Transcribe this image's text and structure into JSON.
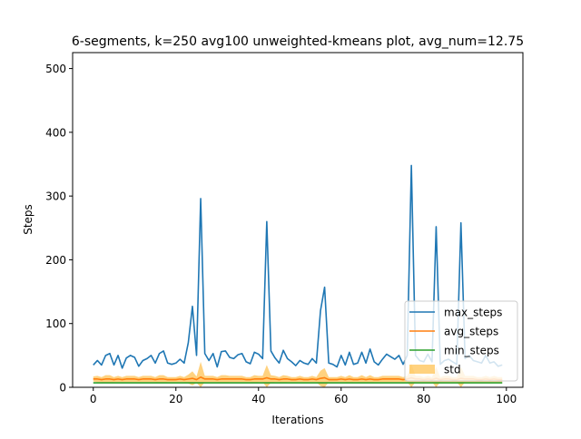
{
  "chart_data": {
    "type": "line",
    "title": "6-segments, k=250 avg100 unweighted-kmeans plot, avg_num=12.75",
    "xlabel": "Iterations",
    "ylabel": "Steps",
    "xlim": [
      -5,
      104
    ],
    "ylim": [
      0,
      525
    ],
    "x_ticks": [
      0,
      20,
      40,
      60,
      80,
      100
    ],
    "y_ticks": [
      0,
      100,
      200,
      300,
      400,
      500
    ],
    "grid": false,
    "legend_position": "bottom-right",
    "series": [
      {
        "name": "max_steps",
        "color": "#1f77b4",
        "x": [
          0,
          1,
          2,
          3,
          4,
          5,
          6,
          7,
          8,
          9,
          10,
          11,
          12,
          13,
          14,
          15,
          16,
          17,
          18,
          19,
          20,
          21,
          22,
          23,
          24,
          25,
          26,
          27,
          28,
          29,
          30,
          31,
          32,
          33,
          34,
          35,
          36,
          37,
          38,
          39,
          40,
          41,
          42,
          43,
          44,
          45,
          46,
          47,
          48,
          49,
          50,
          51,
          52,
          53,
          54,
          55,
          56,
          57,
          58,
          59,
          60,
          61,
          62,
          63,
          64,
          65,
          66,
          67,
          68,
          69,
          70,
          71,
          72,
          73,
          74,
          75,
          76,
          77,
          78,
          79,
          80,
          81,
          82,
          83,
          84,
          85,
          86,
          87,
          88,
          89,
          90,
          91,
          92,
          93,
          94,
          95,
          96,
          97,
          98,
          99
        ],
        "values": [
          35,
          42,
          35,
          50,
          53,
          35,
          50,
          30,
          46,
          50,
          47,
          33,
          42,
          45,
          50,
          38,
          53,
          57,
          38,
          36,
          38,
          44,
          38,
          70,
          127,
          50,
          296,
          53,
          42,
          53,
          32,
          56,
          57,
          47,
          45,
          51,
          53,
          40,
          37,
          55,
          52,
          45,
          260,
          57,
          46,
          38,
          58,
          45,
          40,
          34,
          42,
          38,
          36,
          45,
          38,
          120,
          157,
          38,
          36,
          32,
          50,
          35,
          55,
          36,
          38,
          55,
          38,
          60,
          40,
          35,
          44,
          52,
          48,
          44,
          50,
          36,
          50,
          348,
          50,
          42,
          40,
          52,
          40,
          252,
          36,
          42,
          44,
          40,
          36,
          258,
          45,
          50,
          42,
          40,
          38,
          50,
          38,
          40,
          33,
          35
        ]
      },
      {
        "name": "avg_steps",
        "color": "#ff7f0e",
        "x": [
          0,
          1,
          2,
          3,
          4,
          5,
          6,
          7,
          8,
          9,
          10,
          11,
          12,
          13,
          14,
          15,
          16,
          17,
          18,
          19,
          20,
          21,
          22,
          23,
          24,
          25,
          26,
          27,
          28,
          29,
          30,
          31,
          32,
          33,
          34,
          35,
          36,
          37,
          38,
          39,
          40,
          41,
          42,
          43,
          44,
          45,
          46,
          47,
          48,
          49,
          50,
          51,
          52,
          53,
          54,
          55,
          56,
          57,
          58,
          59,
          60,
          61,
          62,
          63,
          64,
          65,
          66,
          67,
          68,
          69,
          70,
          71,
          72,
          73,
          74,
          75,
          76,
          77,
          78,
          79,
          80,
          81,
          82,
          83,
          84,
          85,
          86,
          87,
          88,
          89,
          90,
          91,
          92,
          93,
          94,
          95,
          96,
          97,
          98,
          99
        ],
        "values": [
          13,
          13,
          12,
          13,
          13,
          12,
          13,
          12,
          13,
          13,
          13,
          12,
          13,
          13,
          13,
          12,
          13,
          13,
          12,
          12,
          12,
          13,
          12,
          13,
          14,
          12,
          16,
          13,
          13,
          13,
          12,
          13,
          13,
          13,
          13,
          13,
          13,
          12,
          12,
          13,
          13,
          13,
          15,
          13,
          13,
          12,
          13,
          13,
          12,
          12,
          13,
          12,
          12,
          13,
          12,
          14,
          15,
          12,
          12,
          12,
          13,
          12,
          13,
          12,
          12,
          13,
          12,
          13,
          12,
          12,
          13,
          13,
          13,
          13,
          13,
          12,
          13,
          15,
          13,
          13,
          12,
          13,
          12,
          14,
          12,
          13,
          13,
          12,
          12,
          14,
          13,
          13,
          13,
          12,
          12,
          13,
          12,
          13,
          12,
          12
        ]
      },
      {
        "name": "min_steps",
        "color": "#2ca02c",
        "x": [
          0,
          1,
          2,
          3,
          4,
          5,
          6,
          7,
          8,
          9,
          10,
          11,
          12,
          13,
          14,
          15,
          16,
          17,
          18,
          19,
          20,
          21,
          22,
          23,
          24,
          25,
          26,
          27,
          28,
          29,
          30,
          31,
          32,
          33,
          34,
          35,
          36,
          37,
          38,
          39,
          40,
          41,
          42,
          43,
          44,
          45,
          46,
          47,
          48,
          49,
          50,
          51,
          52,
          53,
          54,
          55,
          56,
          57,
          58,
          59,
          60,
          61,
          62,
          63,
          64,
          65,
          66,
          67,
          68,
          69,
          70,
          71,
          72,
          73,
          74,
          75,
          76,
          77,
          78,
          79,
          80,
          81,
          82,
          83,
          84,
          85,
          86,
          87,
          88,
          89,
          90,
          91,
          92,
          93,
          94,
          95,
          96,
          97,
          98,
          99
        ],
        "values": [
          7,
          7,
          7,
          7,
          7,
          7,
          7,
          7,
          7,
          7,
          7,
          7,
          7,
          7,
          7,
          7,
          7,
          7,
          7,
          7,
          7,
          7,
          7,
          7,
          7,
          7,
          7,
          7,
          7,
          7,
          7,
          7,
          7,
          7,
          7,
          7,
          7,
          7,
          7,
          7,
          7,
          7,
          7,
          7,
          7,
          7,
          7,
          7,
          7,
          7,
          7,
          7,
          7,
          7,
          7,
          7,
          7,
          7,
          7,
          7,
          7,
          7,
          7,
          7,
          7,
          7,
          7,
          7,
          7,
          7,
          7,
          7,
          7,
          7,
          7,
          7,
          7,
          7,
          7,
          7,
          7,
          7,
          7,
          7,
          7,
          7,
          7,
          7,
          7,
          7,
          7,
          7,
          7,
          7,
          7,
          7,
          7,
          7,
          7,
          7
        ]
      },
      {
        "name": "std",
        "color": "#ffa500",
        "type": "area",
        "x": [
          0,
          1,
          2,
          3,
          4,
          5,
          6,
          7,
          8,
          9,
          10,
          11,
          12,
          13,
          14,
          15,
          16,
          17,
          18,
          19,
          20,
          21,
          22,
          23,
          24,
          25,
          26,
          27,
          28,
          29,
          30,
          31,
          32,
          33,
          34,
          35,
          36,
          37,
          38,
          39,
          40,
          41,
          42,
          43,
          44,
          45,
          46,
          47,
          48,
          49,
          50,
          51,
          52,
          53,
          54,
          55,
          56,
          57,
          58,
          59,
          60,
          61,
          62,
          63,
          64,
          65,
          66,
          67,
          68,
          69,
          70,
          71,
          72,
          73,
          74,
          75,
          76,
          77,
          78,
          79,
          80,
          81,
          82,
          83,
          84,
          85,
          86,
          87,
          88,
          89,
          90,
          91,
          92,
          93,
          94,
          95,
          96,
          97,
          98,
          99
        ],
        "values": [
          4,
          5,
          4,
          6,
          6,
          4,
          5,
          4,
          5,
          5,
          5,
          4,
          5,
          5,
          5,
          4,
          6,
          6,
          4,
          4,
          4,
          5,
          4,
          7,
          11,
          5,
          24,
          5,
          5,
          5,
          4,
          6,
          6,
          5,
          5,
          5,
          5,
          4,
          4,
          6,
          5,
          5,
          20,
          6,
          5,
          4,
          6,
          5,
          4,
          4,
          5,
          4,
          4,
          5,
          4,
          12,
          15,
          4,
          4,
          4,
          5,
          4,
          6,
          4,
          4,
          6,
          4,
          6,
          4,
          4,
          5,
          5,
          5,
          5,
          5,
          4,
          5,
          22,
          5,
          5,
          4,
          5,
          4,
          18,
          4,
          5,
          5,
          4,
          4,
          18,
          5,
          5,
          5,
          4,
          4,
          5,
          4,
          5,
          4,
          4
        ]
      }
    ]
  }
}
